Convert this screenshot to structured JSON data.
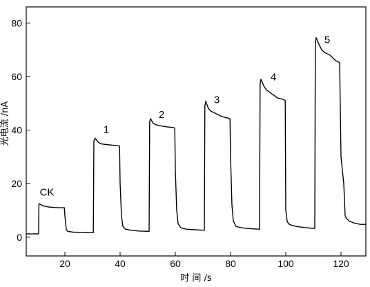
{
  "chart_data": {
    "type": "line",
    "title": "",
    "xlabel": "时 间 /s",
    "ylabel": "光电流 /nA",
    "xlim": [
      6,
      129
    ],
    "ylim": [
      -7,
      86
    ],
    "xticks": [
      20,
      40,
      60,
      80,
      100,
      120
    ],
    "yticks": [
      0,
      20,
      40,
      60,
      80
    ],
    "grid": false,
    "series": [
      {
        "color": "#000000",
        "points": [
          [
            6,
            1.2
          ],
          [
            7,
            1.3
          ],
          [
            8,
            1.2
          ],
          [
            9,
            1.3
          ],
          [
            10,
            1.2
          ],
          [
            10.5,
            1.3
          ],
          [
            10.6,
            12.5
          ],
          [
            11.5,
            12
          ],
          [
            12.5,
            11.6
          ],
          [
            14,
            11.3
          ],
          [
            16,
            11.1
          ],
          [
            18,
            11.0
          ],
          [
            19.8,
            11.0
          ],
          [
            20,
            8
          ],
          [
            20.5,
            3
          ],
          [
            21,
            2.2
          ],
          [
            23,
            1.9
          ],
          [
            26,
            1.8
          ],
          [
            29,
            1.7
          ],
          [
            30.3,
            1.7
          ],
          [
            30.5,
            36
          ],
          [
            31,
            37
          ],
          [
            32,
            35.5
          ],
          [
            33,
            34.9
          ],
          [
            35,
            34.6
          ],
          [
            37,
            34.4
          ],
          [
            39,
            34.2
          ],
          [
            39.8,
            34.0
          ],
          [
            40,
            20
          ],
          [
            40.5,
            8
          ],
          [
            41,
            4
          ],
          [
            42,
            3
          ],
          [
            44,
            2.6
          ],
          [
            47,
            2.3
          ],
          [
            50,
            2.2
          ],
          [
            50.5,
            2.2
          ],
          [
            50.7,
            43
          ],
          [
            51,
            44.3
          ],
          [
            52,
            42.5
          ],
          [
            53,
            42.0
          ],
          [
            55,
            41.5
          ],
          [
            57,
            41.2
          ],
          [
            59,
            41.0
          ],
          [
            59.8,
            40.8
          ],
          [
            60,
            25
          ],
          [
            60.5,
            10
          ],
          [
            61,
            5
          ],
          [
            62,
            3.5
          ],
          [
            64,
            3.0
          ],
          [
            67,
            2.8
          ],
          [
            70,
            2.6
          ],
          [
            70.5,
            2.6
          ],
          [
            70.7,
            49
          ],
          [
            71,
            50.8
          ],
          [
            72,
            48
          ],
          [
            73,
            47
          ],
          [
            75,
            46
          ],
          [
            77,
            45
          ],
          [
            79,
            44.5
          ],
          [
            79.8,
            44.2
          ],
          [
            80,
            30
          ],
          [
            80.5,
            12
          ],
          [
            81,
            6
          ],
          [
            82,
            4
          ],
          [
            84,
            3.5
          ],
          [
            87,
            3.2
          ],
          [
            90,
            3.0
          ],
          [
            90.5,
            3.0
          ],
          [
            90.7,
            57
          ],
          [
            91,
            59
          ],
          [
            92,
            56.5
          ],
          [
            93,
            55
          ],
          [
            95,
            53.5
          ],
          [
            97,
            52
          ],
          [
            99,
            51.5
          ],
          [
            99.8,
            51.0
          ],
          [
            100,
            10
          ],
          [
            100.5,
            6
          ],
          [
            101,
            5
          ],
          [
            102,
            4.5
          ],
          [
            104,
            4.0
          ],
          [
            107,
            3.6
          ],
          [
            110,
            3.3
          ],
          [
            110.5,
            3.3
          ],
          [
            110.7,
            72
          ],
          [
            111,
            74.5
          ],
          [
            112,
            72
          ],
          [
            113,
            70
          ],
          [
            114,
            69
          ],
          [
            115,
            68.5
          ],
          [
            116,
            68
          ],
          [
            117,
            67
          ],
          [
            118,
            66
          ],
          [
            119.5,
            65.2
          ],
          [
            120,
            30
          ],
          [
            121,
            20
          ],
          [
            121.5,
            8
          ],
          [
            122,
            7
          ],
          [
            123,
            6
          ],
          [
            125,
            5.2
          ],
          [
            127,
            4.8
          ],
          [
            129,
            4.8
          ]
        ]
      }
    ],
    "annotations": [
      {
        "text": "CK",
        "x": 13.5,
        "y": 15.5
      },
      {
        "text": "1",
        "x": 35,
        "y": 39
      },
      {
        "text": "2",
        "x": 55,
        "y": 44.5
      },
      {
        "text": "3",
        "x": 75,
        "y": 50
      },
      {
        "text": "4",
        "x": 95.5,
        "y": 58.5
      },
      {
        "text": "5",
        "x": 115,
        "y": 72.5
      }
    ]
  }
}
